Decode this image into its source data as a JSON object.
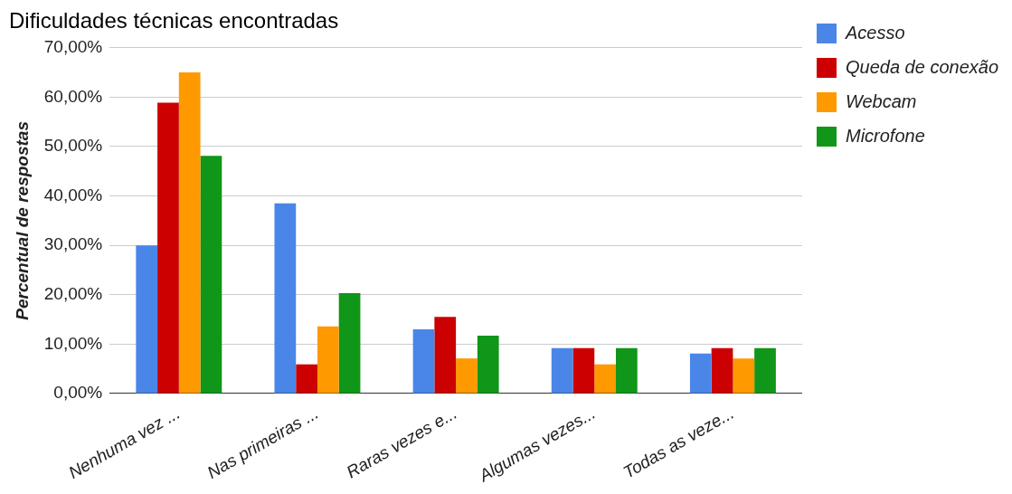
{
  "chart_data": {
    "type": "bar",
    "title": "Dificuldades técnicas encontradas",
    "ylabel": "Percentual de respostas",
    "categories": [
      "Nenhuma vez ...",
      "Nas primeiras ...",
      "Raras vezes e...",
      "Algumas vezes...",
      "Todas as veze..."
    ],
    "series": [
      {
        "name": "Acesso",
        "color": "#4a86e8",
        "values": [
          30,
          38.5,
          13,
          9.2,
          8.1
        ]
      },
      {
        "name": "Queda de conexão",
        "color": "#cc0000",
        "values": [
          58.9,
          5.9,
          15.5,
          9.2,
          9.2
        ]
      },
      {
        "name": "Webcam",
        "color": "#ff9900",
        "values": [
          65,
          13.6,
          7.1,
          5.9,
          7.1
        ]
      },
      {
        "name": "Microfone",
        "color": "#109618",
        "values": [
          48.1,
          20.3,
          11.7,
          9.2,
          9.2
        ]
      }
    ],
    "ylim": [
      0,
      70
    ],
    "yticks": [
      {
        "value": 0,
        "label": "0,00%"
      },
      {
        "value": 10,
        "label": "10,00%"
      },
      {
        "value": 20,
        "label": "20,00%"
      },
      {
        "value": 30,
        "label": "30,00%"
      },
      {
        "value": 40,
        "label": "40,00%"
      },
      {
        "value": 50,
        "label": "50,00%"
      },
      {
        "value": 60,
        "label": "60,00%"
      },
      {
        "value": 70,
        "label": "70,00%"
      }
    ],
    "grid": "y",
    "legend": "right"
  }
}
